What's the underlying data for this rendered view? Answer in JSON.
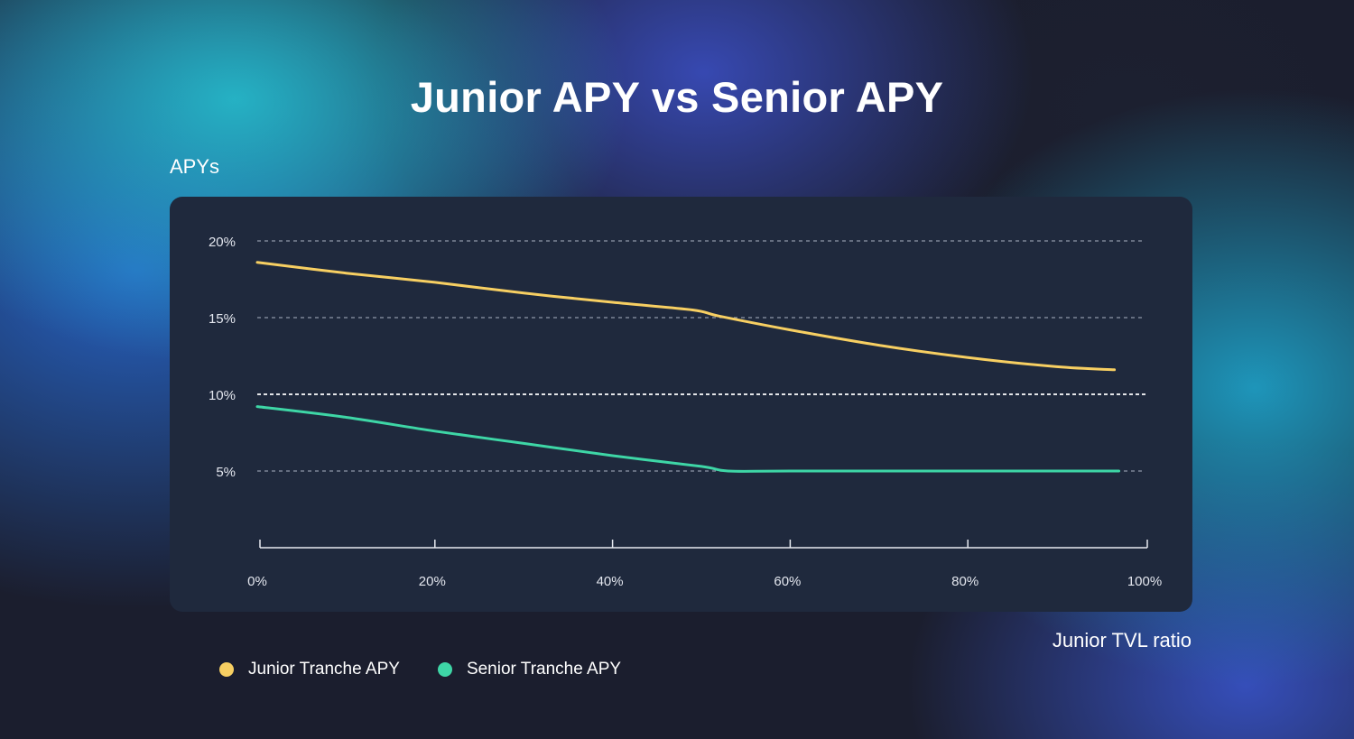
{
  "chart_data": {
    "type": "line",
    "title": "Junior APY vs Senior APY",
    "ylabel": "APYs",
    "xlabel": "Junior TVL ratio",
    "xlim": [
      0,
      100
    ],
    "ylim": [
      0,
      20
    ],
    "x_ticks": [
      0,
      20,
      40,
      60,
      80,
      100
    ],
    "x_tick_labels": [
      "0%",
      "20%",
      "40%",
      "60%",
      "80%",
      "100%"
    ],
    "y_ticks": [
      5,
      10,
      15,
      20
    ],
    "y_tick_labels": [
      "5%",
      "10%",
      "15%",
      "20%"
    ],
    "grid": "horizontal dashed",
    "highlight_gridline": 10,
    "legend_position": "bottom-left",
    "series": [
      {
        "name": "Junior Tranche APY",
        "color": "#f7cf62",
        "points": [
          [
            0,
            18.6
          ],
          [
            10,
            17.9
          ],
          [
            20,
            17.3
          ],
          [
            30,
            16.6
          ],
          [
            40,
            16.0
          ],
          [
            49,
            15.5
          ],
          [
            52,
            15.1
          ],
          [
            60,
            14.2
          ],
          [
            70,
            13.2
          ],
          [
            80,
            12.4
          ],
          [
            90,
            11.8
          ],
          [
            96.5,
            11.6
          ]
        ]
      },
      {
        "name": "Senior Tranche APY",
        "color": "#3ed6a6",
        "points": [
          [
            0,
            9.2
          ],
          [
            10,
            8.5
          ],
          [
            20,
            7.6
          ],
          [
            30,
            6.8
          ],
          [
            40,
            6.0
          ],
          [
            50,
            5.3
          ],
          [
            53,
            5.0
          ],
          [
            60,
            5.0
          ],
          [
            80,
            5.0
          ],
          [
            97,
            5.0
          ]
        ]
      }
    ]
  }
}
